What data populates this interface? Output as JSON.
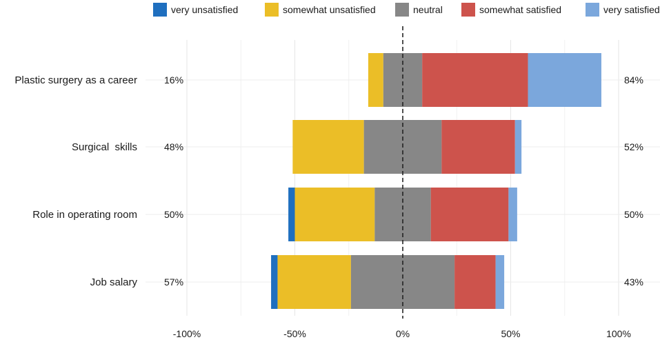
{
  "chart_data": {
    "type": "bar",
    "orientation": "horizontal",
    "stacked": "diverging",
    "xlim": [
      -100,
      100
    ],
    "x_ticks": [
      -100,
      -50,
      0,
      50,
      100
    ],
    "x_tick_labels": [
      "-100%",
      "-50%",
      "0%",
      "50%",
      "100%"
    ],
    "grid": true,
    "center_line": "dashed",
    "legend_position": "top",
    "categories": [
      "Plastic surgery as a career",
      "Surgical  skills",
      "Role in operating room",
      "Job salary"
    ],
    "left_totals": [
      "16%",
      "48%",
      "50%",
      "57%"
    ],
    "right_totals": [
      "84%",
      "52%",
      "50%",
      "43%"
    ],
    "series": [
      {
        "name": "very unsatisfied",
        "color": "#1f6fbf",
        "values": [
          0,
          0,
          3,
          3
        ]
      },
      {
        "name": "somewhat unsatisfied",
        "color": "#ebbe27",
        "values": [
          7,
          33,
          37,
          34
        ]
      },
      {
        "name": "neutral",
        "color": "#878787",
        "values": [
          18,
          36,
          26,
          48
        ]
      },
      {
        "name": "somewhat satisfied",
        "color": "#cd534c",
        "values": [
          49,
          34,
          36,
          19
        ]
      },
      {
        "name": "very satisfied",
        "color": "#7ba7dc",
        "values": [
          34,
          3,
          4,
          4
        ]
      }
    ]
  }
}
